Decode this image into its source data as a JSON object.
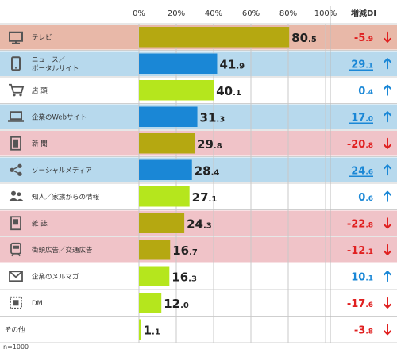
{
  "chart_data": {
    "type": "bar",
    "orientation": "horizontal",
    "xlim": [
      0,
      100
    ],
    "x_ticks": [
      "0%",
      "20%",
      "40%",
      "60%",
      "80%",
      "100%"
    ],
    "grid": true,
    "categories": [
      "テレビ",
      "ニュース／ ポータルサイト",
      "店 頭",
      "企業のWebサイト",
      "新 聞",
      "ソーシャルメディア",
      "知人／家族からの情報",
      "雑 誌",
      "街頭広告／交通広告",
      "企業のメルマガ",
      "DM",
      "その他"
    ],
    "category_lines": [
      [
        "テレビ"
      ],
      [
        "ニュース／",
        "ポータルサイト"
      ],
      [
        "店 頭"
      ],
      [
        "企業のWebサイト"
      ],
      [
        "新 聞"
      ],
      [
        "ソーシャルメディア"
      ],
      [
        "知人／家族からの情報"
      ],
      [
        "雑 誌"
      ],
      [
        "街頭広告／交通広告"
      ],
      [
        "企業のメルマガ"
      ],
      [
        "DM"
      ],
      [
        "その他"
      ]
    ],
    "icons": [
      "tv-icon",
      "smartphone-icon",
      "cart-icon",
      "laptop-icon",
      "newspaper-icon",
      "share-icon",
      "people-icon",
      "magazine-icon",
      "train-icon",
      "mail-icon",
      "stamp-icon",
      ""
    ],
    "values": [
      80.5,
      41.9,
      40.1,
      31.3,
      29.8,
      28.4,
      27.1,
      24.3,
      16.7,
      16.3,
      12.0,
      1.1
    ],
    "value_labels": [
      [
        "80",
        ".5"
      ],
      [
        "41",
        ".9"
      ],
      [
        "40",
        ".1"
      ],
      [
        "31",
        ".3"
      ],
      [
        "29",
        ".8"
      ],
      [
        "28",
        ".4"
      ],
      [
        "27",
        ".1"
      ],
      [
        "24",
        ".3"
      ],
      [
        "16",
        ".7"
      ],
      [
        "16",
        ".3"
      ],
      [
        "12",
        ".0"
      ],
      [
        "1",
        ".1"
      ]
    ],
    "bar_colors": [
      "#b5a811",
      "#1a87d6",
      "#b5e61d",
      "#1a87d6",
      "#b5a811",
      "#1a87d6",
      "#b5e61d",
      "#b5a811",
      "#b5a811",
      "#b5e61d",
      "#b5e61d",
      "#b5e61d"
    ],
    "row_bands": [
      "#e8b8a8",
      "#b7d9ed",
      "",
      "#b7d9ed",
      "#f0c3c8",
      "#b7d9ed",
      "",
      "#f0c3c8",
      "#f0c3c8",
      "",
      "",
      ""
    ],
    "di_title": "増減DI",
    "di_values": [
      -5.9,
      29.1,
      0.4,
      17.0,
      -20.8,
      24.6,
      0.6,
      -22.8,
      -12.1,
      10.1,
      -17.6,
      -3.8
    ],
    "di_labels": [
      [
        "-5",
        ".9"
      ],
      [
        "29",
        ".1"
      ],
      [
        "0",
        ".4"
      ],
      [
        "17",
        ".0"
      ],
      [
        "-20",
        ".8"
      ],
      [
        "24",
        ".6"
      ],
      [
        "0",
        ".6"
      ],
      [
        "-22",
        ".8"
      ],
      [
        "-12",
        ".1"
      ],
      [
        "10",
        ".1"
      ],
      [
        "-17",
        ".6"
      ],
      [
        "-3",
        ".8"
      ]
    ],
    "di_underlined": [
      false,
      true,
      false,
      true,
      false,
      true,
      false,
      false,
      false,
      false,
      false,
      false
    ],
    "footnote": "n=1000"
  },
  "colors": {
    "positive_di": "#1a87d6",
    "negative_di": "#e02020",
    "grid": "#c8c8c8",
    "icon": "#555555"
  }
}
